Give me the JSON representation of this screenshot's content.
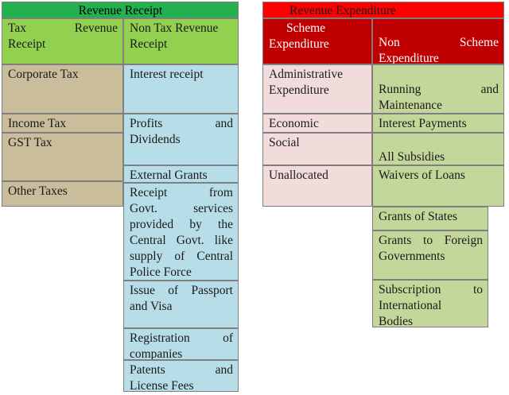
{
  "receipt": {
    "title": "Revenue Receipt",
    "tax_header": [
      "Tax Revenue",
      "Receipt"
    ],
    "nontax_header": [
      "Non Tax Revenue",
      "Receipt"
    ],
    "tax_items": [
      "Corporate Tax",
      "Income Tax",
      "GST Tax",
      "Other Taxes"
    ],
    "nontax_items": [
      [
        "Interest receipt"
      ],
      [
        "Profits and",
        "Dividends"
      ],
      [
        "External Grants"
      ],
      [
        "Receipt from",
        "Govt. services",
        "provided by the",
        "Central Govt. like",
        "supply of Central",
        "Police Force"
      ],
      [
        "Issue of Passport",
        "and Visa"
      ],
      [
        "Registration of",
        "companies"
      ],
      [
        "Patents and",
        "License Fees"
      ]
    ]
  },
  "expenditure": {
    "title": "Revenue Expenditure",
    "scheme_header": [
      "Scheme",
      "Expenditure"
    ],
    "nonscheme_header": [
      "Non Scheme",
      "Expenditure"
    ],
    "scheme_items": [
      [
        "Administrative",
        "Expenditure"
      ],
      [
        "Economic"
      ],
      [
        "Social"
      ],
      [
        "Unallocated"
      ]
    ],
    "nonscheme_items": [
      [
        "Running and",
        "Maintenance"
      ],
      [
        "Interest Payments"
      ],
      [
        "All Subsidies"
      ],
      [
        "Waivers of Loans"
      ],
      [
        "Grants of States"
      ],
      [
        "Grants to Foreign",
        "Governments"
      ],
      [
        "Subscription to",
        "International",
        "Bodies"
      ]
    ]
  },
  "colors": {
    "receipt_title": "#22b14c",
    "receipt_subheader": "#92d050",
    "tax_cells": "#c9bd9c",
    "nontax_cells": "#b7dde8",
    "expenditure_title": "#ff0000",
    "expenditure_subheader": "#c00000",
    "scheme_cells": "#f2dcdb",
    "nonscheme_cells": "#c4d79b"
  }
}
